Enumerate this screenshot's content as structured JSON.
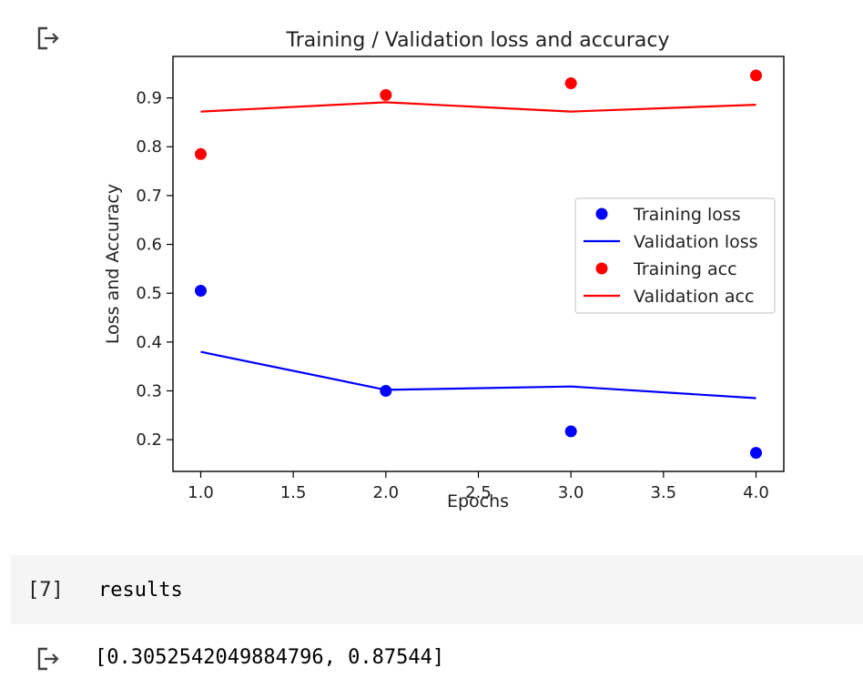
{
  "output_icon": "output-arrow-icon",
  "chart_data": {
    "type": "line",
    "title": "Training / Validation loss and accuracy",
    "xlabel": "Epochs",
    "ylabel": "Loss and Accuracy",
    "xlim": [
      0.85,
      4.15
    ],
    "ylim": [
      0.135,
      0.985
    ],
    "xticks": [
      "1.0",
      "1.5",
      "2.0",
      "2.5",
      "3.0",
      "3.5",
      "4.0"
    ],
    "xtick_values": [
      1.0,
      1.5,
      2.0,
      2.5,
      3.0,
      3.5,
      4.0
    ],
    "yticks": [
      "0.2",
      "0.3",
      "0.4",
      "0.5",
      "0.6",
      "0.7",
      "0.8",
      "0.9"
    ],
    "ytick_values": [
      0.2,
      0.3,
      0.4,
      0.5,
      0.6,
      0.7,
      0.8,
      0.9
    ],
    "grid": false,
    "legend_position": "center-right",
    "x": [
      1,
      2,
      3,
      4
    ],
    "series": [
      {
        "name": "Training loss",
        "kind": "scatter",
        "color": "#0000ff",
        "values": [
          0.505,
          0.3,
          0.217,
          0.173
        ]
      },
      {
        "name": "Validation loss",
        "kind": "line",
        "color": "#0000ff",
        "values": [
          0.38,
          0.302,
          0.309,
          0.285
        ]
      },
      {
        "name": "Training acc",
        "kind": "scatter",
        "color": "#ff0000",
        "values": [
          0.785,
          0.906,
          0.93,
          0.946
        ]
      },
      {
        "name": "Validation acc",
        "kind": "line",
        "color": "#ff0000",
        "values": [
          0.872,
          0.891,
          0.872,
          0.886
        ]
      }
    ]
  },
  "code_cell": {
    "execution_count": "[7]",
    "code": "results"
  },
  "result_output": "[0.3052542049884796, 0.87544]"
}
